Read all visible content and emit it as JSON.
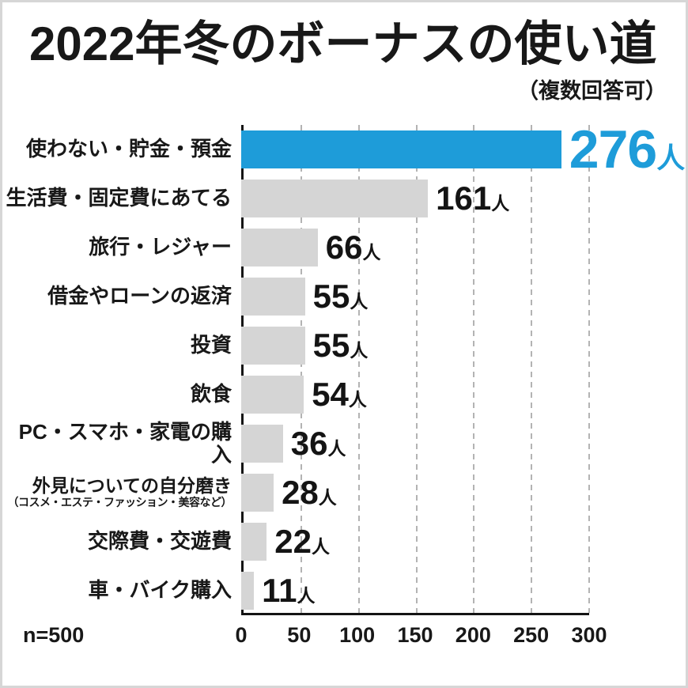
{
  "chart_data": {
    "type": "bar",
    "orientation": "horizontal",
    "title": "2022年冬のボーナスの使い道",
    "subtitle": "（複数回答可）",
    "note": "n=500",
    "unit": "人",
    "categories": [
      "使わない・貯金・預金",
      "生活費・固定費にあてる",
      "旅行・レジャー",
      "借金やローンの返済",
      "投資",
      "飲食",
      "PC・スマホ・家電の購入",
      "外見についての自分磨き",
      "交際費・交遊費",
      "車・バイク購入"
    ],
    "sublabels": {
      "7": "（コスメ・エステ・ファッション・美容など）"
    },
    "values": [
      276,
      161,
      66,
      55,
      55,
      54,
      36,
      28,
      22,
      11
    ],
    "xlim": [
      0,
      300
    ],
    "xticks": [
      0,
      50,
      100,
      150,
      200,
      250,
      300
    ],
    "highlight_index": 0,
    "colors": {
      "highlight": "#1e9cd9",
      "bar": "#d5d5d5",
      "text": "#181818",
      "grid": "#b3b3b3",
      "axis": "#141414"
    },
    "grid": true,
    "legend": false
  }
}
